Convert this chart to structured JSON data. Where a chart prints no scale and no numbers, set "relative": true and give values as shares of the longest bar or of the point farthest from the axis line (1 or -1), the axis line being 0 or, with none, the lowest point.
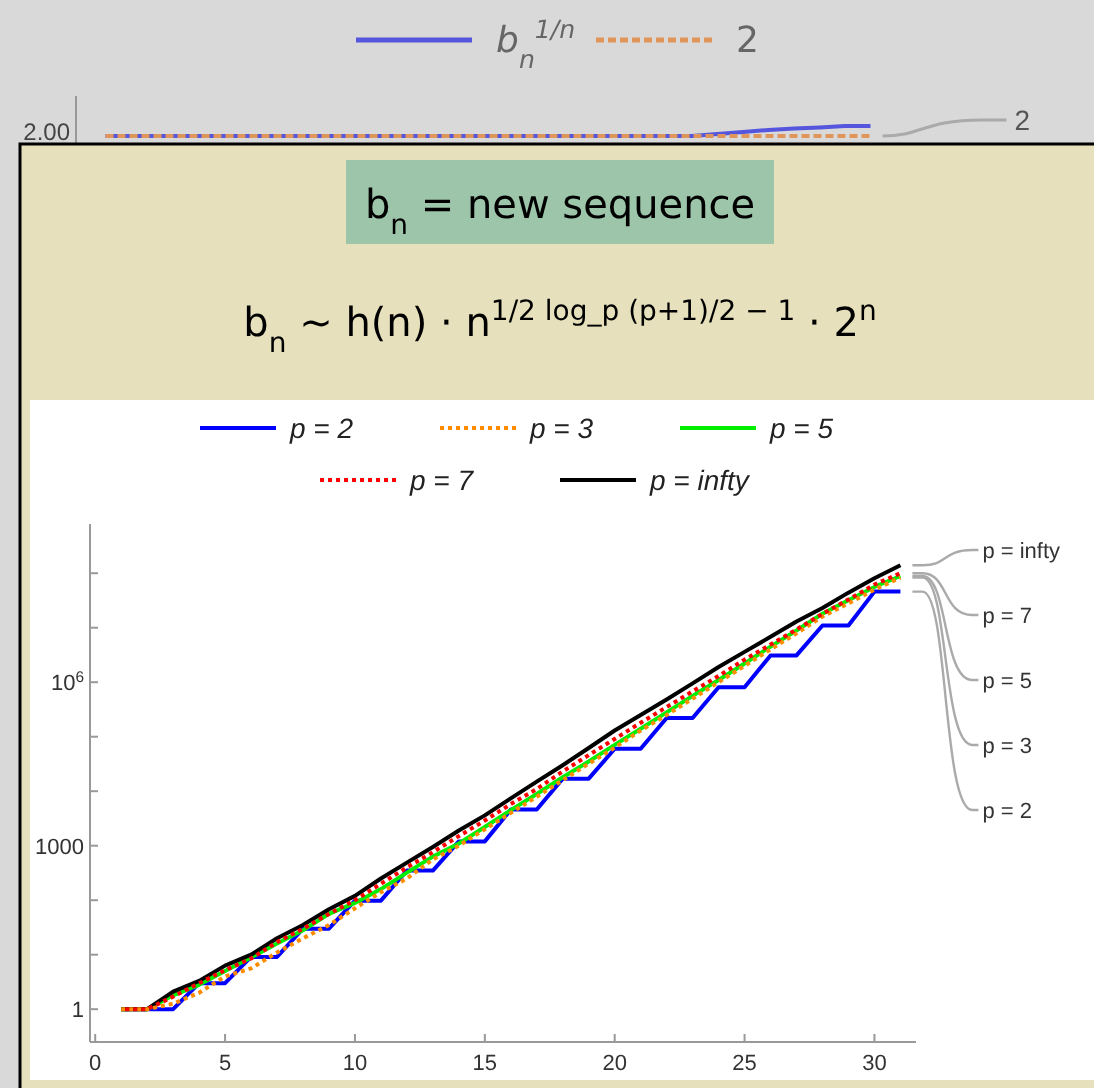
{
  "chart_data": [
    {
      "type": "line",
      "legend": "top",
      "relative": true,
      "categories": [
        null,
        null,
        null,
        null,
        null,
        null,
        null,
        null,
        null,
        null,
        null,
        null,
        null,
        null,
        null,
        null,
        null,
        null,
        null,
        null,
        null,
        null,
        null,
        null,
        null,
        null,
        null,
        null,
        null,
        null,
        null
      ],
      "annotations": [
        "2.00",
        "2"
      ],
      "series": [
        {
          "name": "b$_{n}$$^{1/n}$",
          "color": "#5555dd",
          "line_style": "solid",
          "values": [
            0,
            0,
            0,
            0,
            0,
            0,
            0,
            0,
            0,
            0,
            0,
            0,
            0,
            0,
            0,
            0,
            0,
            0,
            0,
            0,
            0,
            0,
            0,
            0,
            0.2,
            0.4,
            0.6,
            0.75,
            0.85,
            1,
            1
          ]
        },
        {
          "name": "2",
          "color": "#e0965a",
          "line_style": "dashed",
          "values": [
            0,
            0,
            0,
            0,
            0,
            0,
            0,
            0,
            0,
            0,
            0,
            0,
            0,
            0,
            0,
            0,
            0,
            0,
            0,
            0,
            0,
            0,
            0,
            0,
            0,
            0,
            0,
            0,
            0,
            0,
            0
          ]
        }
      ]
    },
    {
      "type": "line",
      "title": "b$_{n}$ = new sequence",
      "subtitle": "b$_{n}$ ∼ h(n) · n$^{1/2 log_p (p+1)/2 − 1}$ · 2$^{n}$",
      "legend": "top",
      "log": "y",
      "xlim": [
        -0.2,
        31.6
      ],
      "xticks": [
        0,
        5,
        10,
        15,
        20,
        25,
        30
      ],
      "ylim": [
        0.25,
        800000000.0
      ],
      "yticks": [
        1,
        {
          "value": 10,
          "label": null
        },
        {
          "value": 100,
          "label": null
        },
        1000,
        {
          "value": 10000.0,
          "label": null
        },
        {
          "value": 100000.0,
          "label": null
        },
        {
          "value": 1000000.0,
          "label": "10$^{6}$"
        },
        {
          "value": 10000000.0,
          "label": null
        },
        {
          "value": 100000000.0,
          "label": null
        }
      ],
      "x": [
        1,
        2,
        3,
        4,
        5,
        6,
        7,
        8,
        9,
        10,
        11,
        12,
        13,
        14,
        15,
        16,
        17,
        18,
        19,
        20,
        21,
        22,
        23,
        24,
        25,
        26,
        27,
        28,
        29,
        30,
        31
      ],
      "series": [
        {
          "name": "p = 2",
          "color": "#0000ff",
          "line_style": "solid",
          "values": [
            1,
            1,
            1,
            3,
            3,
            9.1,
            9.1,
            30,
            30,
            98,
            98,
            350,
            350,
            1200.0,
            1200.0,
            4600.0,
            4600.0,
            17000.0,
            17000.0,
            60000.0,
            60000.0,
            220000.0,
            220000.0,
            810000.0,
            810000.0,
            3100000.0,
            3100000.0,
            11000000.0,
            11000000.0,
            46000000.0,
            46000000.0
          ]
        },
        {
          "name": "p = 3",
          "color": "#ff8c00",
          "line_style": "dotted",
          "values": [
            1,
            1,
            1.26,
            2,
            4,
            5.6,
            11,
            20,
            35,
            71,
            140,
            250,
            560,
            1000.0,
            2000.0,
            4000.0,
            7900.0,
            16000.0,
            32000.0,
            63000.0,
            130000.0,
            250000.0,
            500000.0,
            1000000.0,
            2000000.0,
            4000000.0,
            7900000.0,
            16000000.0,
            28000000.0,
            50000000.0,
            83000000.0
          ]
        },
        {
          "name": "p = 5",
          "color": "#00ee00",
          "line_style": "solid",
          "values": [
            1,
            1,
            1.8,
            2.8,
            5,
            8.9,
            16,
            28,
            56,
            89,
            160,
            320,
            630,
            1100.0,
            2200.0,
            4500.0,
            8900.0,
            18000.0,
            35000.0,
            71000.0,
            140000.0,
            280000.0,
            560000.0,
            1100000.0,
            2200000.0,
            4500000.0,
            8900000.0,
            18000000.0,
            32000000.0,
            56000000.0,
            89000000.0
          ]
        },
        {
          "name": "p = 7",
          "color": "#ff0000",
          "line_style": "dotted",
          "values": [
            1,
            1,
            1.7,
            3,
            5.2,
            8.5,
            17,
            30,
            56,
            100,
            200,
            400,
            760,
            1500.0,
            2900.0,
            5800.0,
            11000.0,
            23000.0,
            46000.0,
            91000.0,
            180000.0,
            350000.0,
            680000.0,
            1300000.0,
            2600000.0,
            4900000.0,
            9300000.0,
            18000000.0,
            33000000.0,
            62000000.0,
            100000000.0
          ]
        },
        {
          "name": "p = infty",
          "color": "#000000",
          "line_style": "solid",
          "values": [
            1,
            1,
            2.1,
            3.3,
            6.3,
            10,
            20,
            35,
            68,
            120,
            250,
            490,
            950,
            1900.0,
            3600.0,
            7400.0,
            15000.0,
            30000.0,
            62000.0,
            130000.0,
            250000.0,
            480000.0,
            950000.0,
            1900000.0,
            3600000.0,
            6800000.0,
            13000000.0,
            23000000.0,
            44000000.0,
            81000000.0,
            140000000.0
          ]
        }
      ]
    }
  ]
}
